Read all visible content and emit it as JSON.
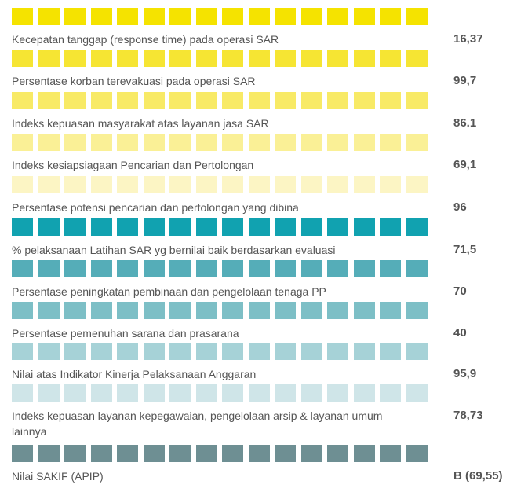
{
  "rows": [
    {
      "label": "Kecepatan tanggap (response time) pada operasi SAR",
      "value": "16,37",
      "color": "#f5e300"
    },
    {
      "label": "Persentase korban terevakuasi pada operasi SAR",
      "value": "99,7",
      "color": "#f6e533"
    },
    {
      "label": "Indeks kepuasan masyarakat atas layanan jasa SAR",
      "value": "86.1",
      "color": "#f8ea66"
    },
    {
      "label": "Indeks kesiapsiagaan Pencarian dan Pertolongan",
      "value": "69,1",
      "color": "#faf096"
    },
    {
      "label": "Persentase potensi pencarian dan pertolongan yang dibina",
      "value": "96",
      "color": "#fcf5c4"
    },
    {
      "label": "% pelaksanaan Latihan SAR yg bernilai baik berdasarkan evaluasi",
      "value": "71,5",
      "color": "#11a2b0"
    },
    {
      "label": "Persentase peningkatan pembinaan dan pengelolaan tenaga PP",
      "value": "70",
      "color": "#55adb8"
    },
    {
      "label": "Persentase pemenuhan sarana dan prasarana",
      "value": "40",
      "color": "#7dbfc6"
    },
    {
      "label": "Nilai atas Indikator Kinerja Pelaksanaan Anggaran",
      "value": "95,9",
      "color": "#a6d2d7"
    },
    {
      "label": "Indeks kepuasan layanan kepegawaian, pengelolaan arsip & layanan umum lainnya",
      "value": "78,73",
      "color": "#cfe5e8"
    },
    {
      "label": "Nilai SAKIF (APIP)",
      "value": "B (69,55)",
      "color": "#6e8f93"
    }
  ]
}
